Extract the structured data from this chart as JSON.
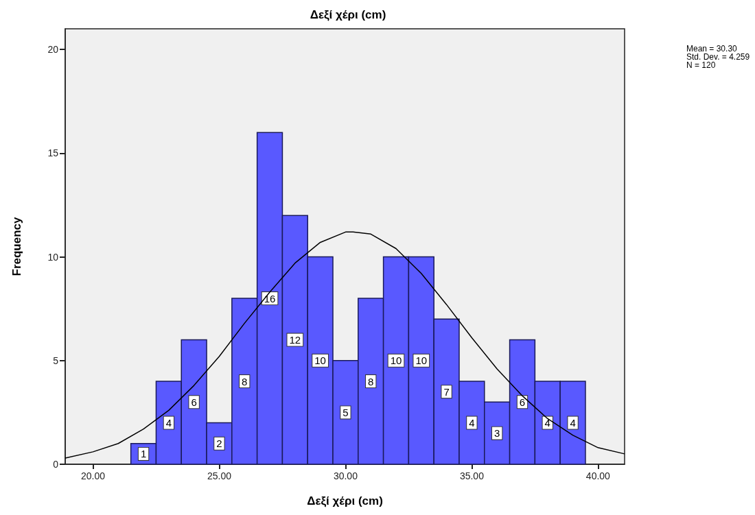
{
  "chart_data": {
    "type": "histogram",
    "title": "Δεξί χέρι (cm)",
    "xlabel": "Δεξί χέρι (cm)",
    "ylabel": "Frequency",
    "bins": [
      21.5,
      22.5,
      23.5,
      24.5,
      25.5,
      26.5,
      27.5,
      28.5,
      29.5,
      30.5,
      31.5,
      32.5,
      33.5,
      34.5,
      35.5,
      36.5,
      37.5,
      38.5,
      39.5
    ],
    "series": [
      {
        "color": "#5959ff",
        "values": [
          1,
          4,
          6,
          2,
          8,
          16,
          12,
          10,
          5,
          8,
          10,
          10,
          7,
          4,
          3,
          6,
          4,
          4
        ],
        "value_labels": [
          "1",
          "4",
          "6",
          "2",
          "8",
          "16",
          "12",
          "10",
          "5",
          "8",
          "10",
          "10",
          "7",
          "4",
          "3",
          "6",
          "4",
          "4"
        ]
      },
      {
        "type": "line",
        "color": "#000000",
        "x": [
          18.9,
          20,
          21,
          22,
          23,
          24,
          25,
          26,
          27,
          28,
          29,
          30,
          30.3,
          31,
          32,
          33,
          34,
          35,
          36,
          37,
          38,
          39,
          40,
          41.05
        ],
        "values": [
          0.3,
          0.6,
          1.0,
          1.7,
          2.6,
          3.8,
          5.2,
          6.8,
          8.3,
          9.7,
          10.7,
          11.2,
          11.2,
          11.1,
          10.4,
          9.2,
          7.7,
          6.1,
          4.6,
          3.3,
          2.2,
          1.4,
          0.8,
          0.5
        ]
      }
    ],
    "xlim": [
      18.9,
      41.05
    ],
    "xticks": [
      {
        "value": 20,
        "label": "20.00"
      },
      {
        "value": 25,
        "label": "25.00"
      },
      {
        "value": 30,
        "label": "30.00"
      },
      {
        "value": 35,
        "label": "35.00"
      },
      {
        "value": 40,
        "label": "40.00"
      }
    ],
    "ylim": [
      0,
      21
    ],
    "yticks": [
      0,
      5,
      10,
      15,
      20
    ],
    "grid": false,
    "annotations": [
      "Mean = 30.30",
      "Std. Dev. = 4.259",
      "N = 120"
    ]
  }
}
